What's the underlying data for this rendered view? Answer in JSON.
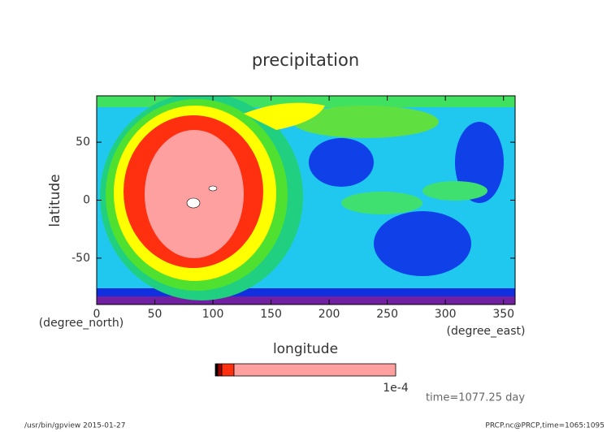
{
  "chart_data": {
    "type": "contour",
    "title": "precipitation",
    "x_label": "longitude",
    "y_label": "latitude",
    "x_unit": "(degree_east)",
    "y_unit": "(degree_north)",
    "xlim": [
      0,
      360
    ],
    "ylim": [
      -90,
      90
    ],
    "xticks": [
      0,
      50,
      100,
      150,
      200,
      250,
      300,
      350
    ],
    "yticks": [
      -50,
      0,
      50
    ],
    "colorbar": {
      "colors": [
        "#000000",
        "#a00000",
        "#ff3010",
        "#ffa0a0"
      ],
      "label": "1e-4"
    },
    "annotation": "time=1077.25 day",
    "footer_left": "/usr/bin/gpview  2015-01-27",
    "footer_right": "PRCP.nc@PRCP,time=1065:1095"
  }
}
